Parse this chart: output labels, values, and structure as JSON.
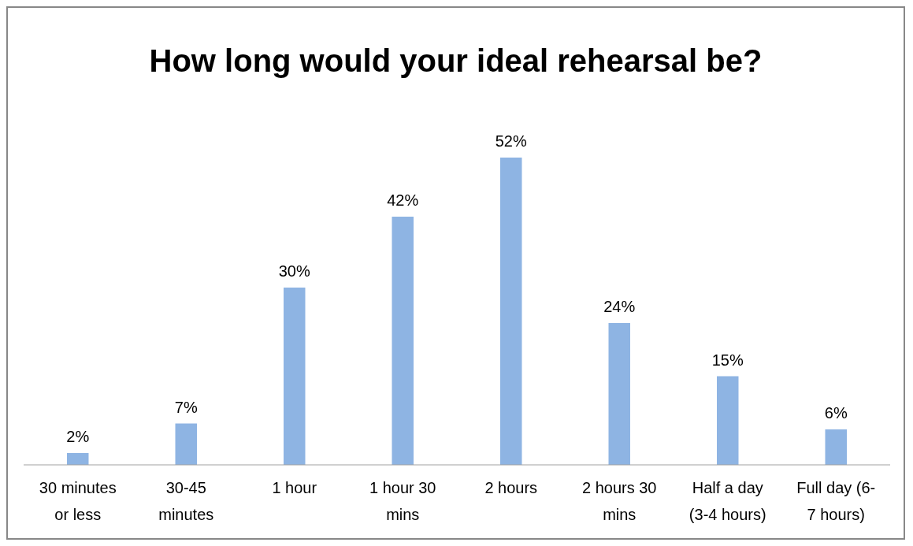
{
  "chart_data": {
    "type": "bar",
    "title": "How long would your ideal rehearsal be?",
    "categories": [
      "30 minutes or less",
      "30-45 minutes",
      "1 hour",
      "1 hour 30 mins",
      "2 hours",
      "2 hours 30 mins",
      "Half a day (3-4 hours)",
      "Full day (6-7 hours)"
    ],
    "values": [
      2,
      7,
      30,
      42,
      52,
      24,
      15,
      6
    ],
    "value_labels": [
      "2%",
      "7%",
      "30%",
      "42%",
      "52%",
      "24%",
      "15%",
      "6%"
    ],
    "color": "#8eb4e3",
    "grid": false,
    "legend": false
  }
}
